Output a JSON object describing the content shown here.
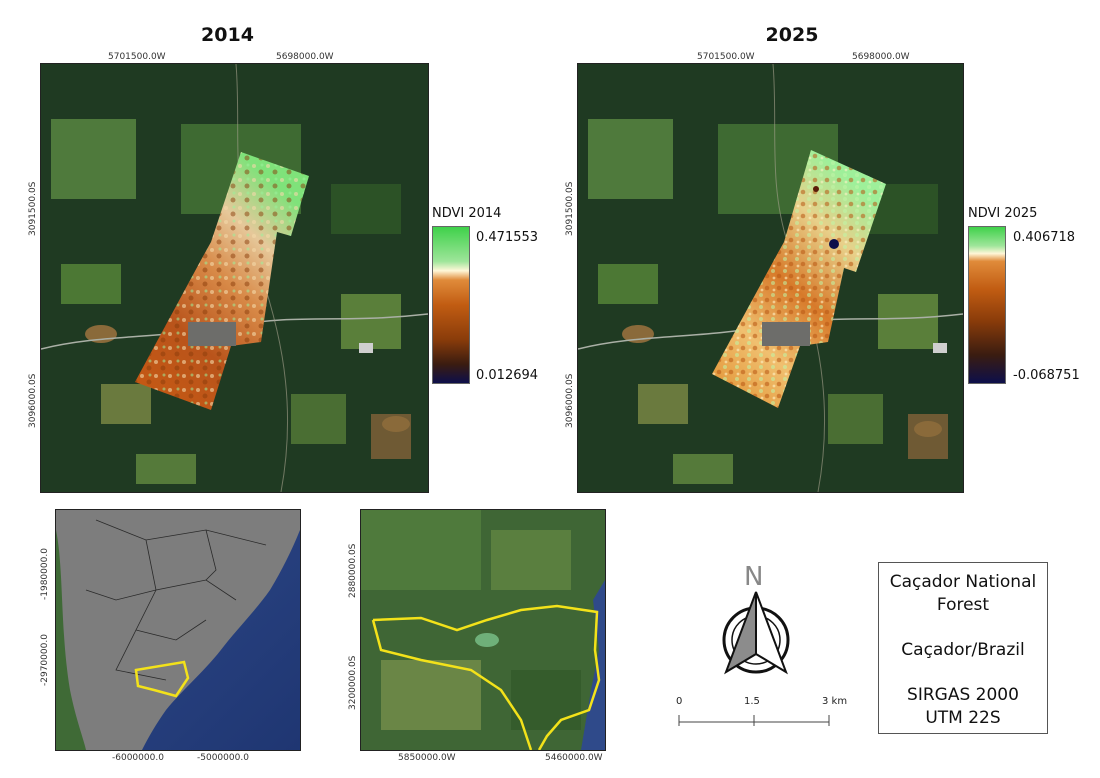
{
  "panels": [
    {
      "id": "2014",
      "title": "2014",
      "x_ticks": [
        "5701500.0W",
        "5698000.0W"
      ],
      "y_ticks": [
        "3091500.0S",
        "3096000.0S"
      ],
      "legend": {
        "title": "NDVI 2014",
        "max": "0.471553",
        "min": "0.012694"
      }
    },
    {
      "id": "2025",
      "title": "2025",
      "x_ticks": [
        "5701500.0W",
        "5698000.0W"
      ],
      "y_ticks": [
        "3091500.0S",
        "3096000.0S"
      ],
      "legend": {
        "title": "NDVI 2025",
        "max": "0.406718",
        "min": "-0.068751"
      }
    }
  ],
  "locator_south_america": {
    "x_ticks": [
      "-6000000.0",
      "-5000000.0"
    ],
    "y_ticks": [
      "-1980000.0",
      "-2970000.0"
    ]
  },
  "locator_state": {
    "x_ticks": [
      "5850000.0W",
      "5460000.0W"
    ],
    "y_ticks": [
      "2880000.0S",
      "3200000.0S"
    ]
  },
  "north_arrow": {
    "letter": "N"
  },
  "scale_bar": {
    "labels": [
      "0",
      "1.5",
      "3 km"
    ]
  },
  "info": {
    "line1": "Caçador National",
    "line2": "Forest",
    "line3": "Caçador/Brazil",
    "line4": "SIRGAS 2000",
    "line5": "UTM 22S"
  },
  "colors": {
    "ndvi_high": "#3fd14a",
    "ndvi_mid": "#fff7d8",
    "ndvi_orange": "#d2691e",
    "ndvi_brown": "#8a3c0a",
    "ndvi_low": "#0d0f4a",
    "outline_yellow": "#f3e21a"
  }
}
